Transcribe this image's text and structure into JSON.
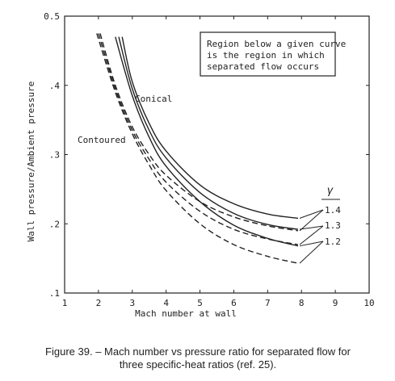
{
  "chart_data": {
    "type": "line",
    "xlabel": "Mach number at wall",
    "ylabel": "Wall pressure/Ambient pressure",
    "xlim": [
      1,
      10
    ],
    "ylim": [
      0.1,
      0.5
    ],
    "x_ticks": [
      "1",
      "2",
      "3",
      "4",
      "5",
      "6",
      "7",
      "8",
      "9",
      "10"
    ],
    "y_ticks": [
      ".1",
      ".2",
      ".3",
      ".4",
      "0.5"
    ],
    "annotation_box": [
      "Region below a given curve",
      "is the region in which",
      "separated flow occurs"
    ],
    "labels": {
      "conical": "Conical",
      "contoured": "Contoured",
      "gamma_header": "γ"
    },
    "gamma_labels": [
      "1.4",
      "1.3",
      "1.2"
    ],
    "series": [
      {
        "group": "Conical",
        "gamma": "1.4",
        "style": "solid",
        "x": [
          2.7,
          3.0,
          3.5,
          4.0,
          5.0,
          6.0,
          7.0,
          7.9
        ],
        "y": [
          0.47,
          0.405,
          0.345,
          0.305,
          0.256,
          0.229,
          0.214,
          0.208
        ]
      },
      {
        "group": "Conical",
        "gamma": "1.3",
        "style": "solid",
        "x": [
          2.6,
          3.0,
          3.5,
          4.0,
          5.0,
          6.0,
          7.0,
          7.9
        ],
        "y": [
          0.47,
          0.395,
          0.335,
          0.295,
          0.245,
          0.215,
          0.199,
          0.192
        ]
      },
      {
        "group": "Conical",
        "gamma": "1.2",
        "style": "solid",
        "x": [
          2.5,
          3.0,
          3.5,
          4.0,
          5.0,
          6.0,
          7.0,
          7.9
        ],
        "y": [
          0.47,
          0.385,
          0.325,
          0.283,
          0.232,
          0.198,
          0.179,
          0.168
        ]
      },
      {
        "group": "Contoured",
        "gamma": "1.4",
        "style": "dashed",
        "x": [
          2.05,
          2.5,
          3.0,
          3.5,
          4.0,
          5.0,
          6.0,
          7.0,
          7.9
        ],
        "y": [
          0.475,
          0.4,
          0.34,
          0.3,
          0.27,
          0.232,
          0.21,
          0.197,
          0.19
        ]
      },
      {
        "group": "Contoured",
        "gamma": "1.3",
        "style": "dashed",
        "x": [
          2.0,
          2.5,
          3.0,
          3.5,
          4.0,
          5.0,
          6.0,
          7.0,
          7.9
        ],
        "y": [
          0.475,
          0.395,
          0.335,
          0.293,
          0.26,
          0.218,
          0.192,
          0.178,
          0.17
        ]
      },
      {
        "group": "Contoured",
        "gamma": "1.2",
        "style": "dashed",
        "x": [
          1.95,
          2.5,
          3.0,
          3.5,
          4.0,
          5.0,
          6.0,
          7.0,
          7.9
        ],
        "y": [
          0.475,
          0.39,
          0.33,
          0.285,
          0.248,
          0.2,
          0.17,
          0.153,
          0.143
        ]
      }
    ],
    "caption": [
      "Figure 39. – Mach number vs pressure ratio for separated flow for",
      "three specific-heat ratios (ref. 25)."
    ]
  }
}
